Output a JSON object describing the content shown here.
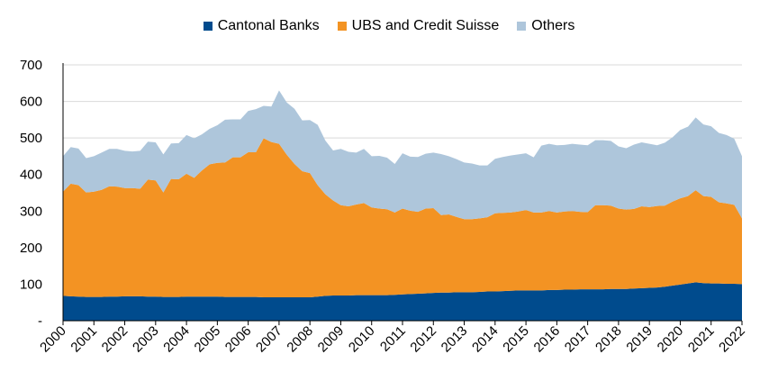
{
  "chart_data": {
    "type": "area",
    "stacked": true,
    "title": "",
    "xlabel": "",
    "ylabel": "",
    "ylim": [
      0,
      700
    ],
    "y_ticks": [
      {
        "value": 0,
        "label": "-"
      },
      {
        "value": 100,
        "label": "100"
      },
      {
        "value": 200,
        "label": "200"
      },
      {
        "value": 300,
        "label": "300"
      },
      {
        "value": 400,
        "label": "400"
      },
      {
        "value": 500,
        "label": "500"
      },
      {
        "value": 600,
        "label": "600"
      },
      {
        "value": 700,
        "label": "700"
      }
    ],
    "x_range": [
      2000,
      2022
    ],
    "x_tick_labels": [
      "2000",
      "2001",
      "2002",
      "2003",
      "2004",
      "2005",
      "2006",
      "2007",
      "2008",
      "2009",
      "2010",
      "2011",
      "2012",
      "2013",
      "2014",
      "2015",
      "2016",
      "2017",
      "2018",
      "2019",
      "2020",
      "2021",
      "2022"
    ],
    "grid": "horizontal",
    "legend_position": "top-center",
    "x": [
      2000.0,
      2000.25,
      2000.5,
      2000.75,
      2001.0,
      2001.25,
      2001.5,
      2001.75,
      2002.0,
      2002.25,
      2002.5,
      2002.75,
      2003.0,
      2003.25,
      2003.5,
      2003.75,
      2004.0,
      2004.25,
      2004.5,
      2004.75,
      2005.0,
      2005.25,
      2005.5,
      2005.75,
      2006.0,
      2006.25,
      2006.5,
      2006.75,
      2007.0,
      2007.25,
      2007.5,
      2007.75,
      2008.0,
      2008.25,
      2008.5,
      2008.75,
      2009.0,
      2009.25,
      2009.5,
      2009.75,
      2010.0,
      2010.25,
      2010.5,
      2010.75,
      2011.0,
      2011.25,
      2011.5,
      2011.75,
      2012.0,
      2012.25,
      2012.5,
      2012.75,
      2013.0,
      2013.25,
      2013.5,
      2013.75,
      2014.0,
      2014.25,
      2014.5,
      2014.75,
      2015.0,
      2015.25,
      2015.5,
      2015.75,
      2016.0,
      2016.25,
      2016.5,
      2016.75,
      2017.0,
      2017.25,
      2017.5,
      2017.75,
      2018.0,
      2018.25,
      2018.5,
      2018.75,
      2019.0,
      2019.25,
      2019.5,
      2019.75,
      2020.0,
      2020.25,
      2020.5,
      2020.75,
      2021.0,
      2021.25,
      2021.5,
      2021.75,
      2022.0
    ],
    "series": [
      {
        "name": "Cantonal Banks",
        "color": "#004B8D",
        "values": [
          68,
          67,
          66,
          65,
          65,
          65,
          66,
          66,
          67,
          67,
          67,
          66,
          66,
          65,
          65,
          65,
          66,
          66,
          66,
          66,
          66,
          65,
          65,
          65,
          65,
          65,
          64,
          64,
          64,
          64,
          64,
          64,
          64,
          66,
          68,
          69,
          69,
          69,
          70,
          70,
          70,
          70,
          70,
          71,
          72,
          73,
          74,
          75,
          76,
          77,
          77,
          78,
          78,
          78,
          79,
          80,
          80,
          81,
          82,
          83,
          83,
          83,
          83,
          84,
          84,
          85,
          85,
          86,
          86,
          86,
          86,
          87,
          87,
          87,
          88,
          89,
          90,
          91,
          93,
          96,
          99,
          102,
          105,
          103,
          102,
          102,
          101,
          101,
          100
        ]
      },
      {
        "name": "UBS and Credit Suisse",
        "color": "#F39323",
        "values": [
          285,
          308,
          305,
          286,
          288,
          293,
          302,
          301,
          296,
          296,
          294,
          320,
          318,
          286,
          323,
          322,
          336,
          325,
          345,
          362,
          366,
          368,
          382,
          382,
          396,
          396,
          435,
          425,
          420,
          390,
          365,
          345,
          340,
          305,
          278,
          260,
          247,
          244,
          248,
          252,
          240,
          237,
          235,
          225,
          235,
          228,
          224,
          232,
          232,
          212,
          214,
          206,
          200,
          200,
          201,
          203,
          214,
          214,
          214,
          216,
          220,
          213,
          213,
          216,
          212,
          214,
          215,
          212,
          211,
          230,
          230,
          228,
          220,
          217,
          218,
          224,
          221,
          223,
          222,
          230,
          236,
          239,
          252,
          238,
          237,
          222,
          220,
          216,
          180
        ]
      },
      {
        "name": "Others",
        "color": "#AEC6DB",
        "values": [
          97,
          100,
          100,
          94,
          97,
          102,
          102,
          103,
          102,
          100,
          104,
          104,
          104,
          104,
          97,
          99,
          106,
          108,
          99,
          97,
          103,
          117,
          104,
          104,
          113,
          118,
          89,
          97,
          146,
          143,
          151,
          139,
          145,
          165,
          147,
          137,
          154,
          149,
          142,
          148,
          140,
          144,
          141,
          133,
          151,
          148,
          150,
          150,
          152,
          167,
          159,
          158,
          155,
          152,
          145,
          142,
          149,
          153,
          156,
          156,
          155,
          151,
          183,
          184,
          184,
          182,
          184,
          184,
          183,
          178,
          178,
          177,
          170,
          168,
          176,
          175,
          173,
          166,
          172,
          176,
          187,
          190,
          199,
          196,
          193,
          190,
          187,
          181,
          170
        ]
      }
    ]
  }
}
